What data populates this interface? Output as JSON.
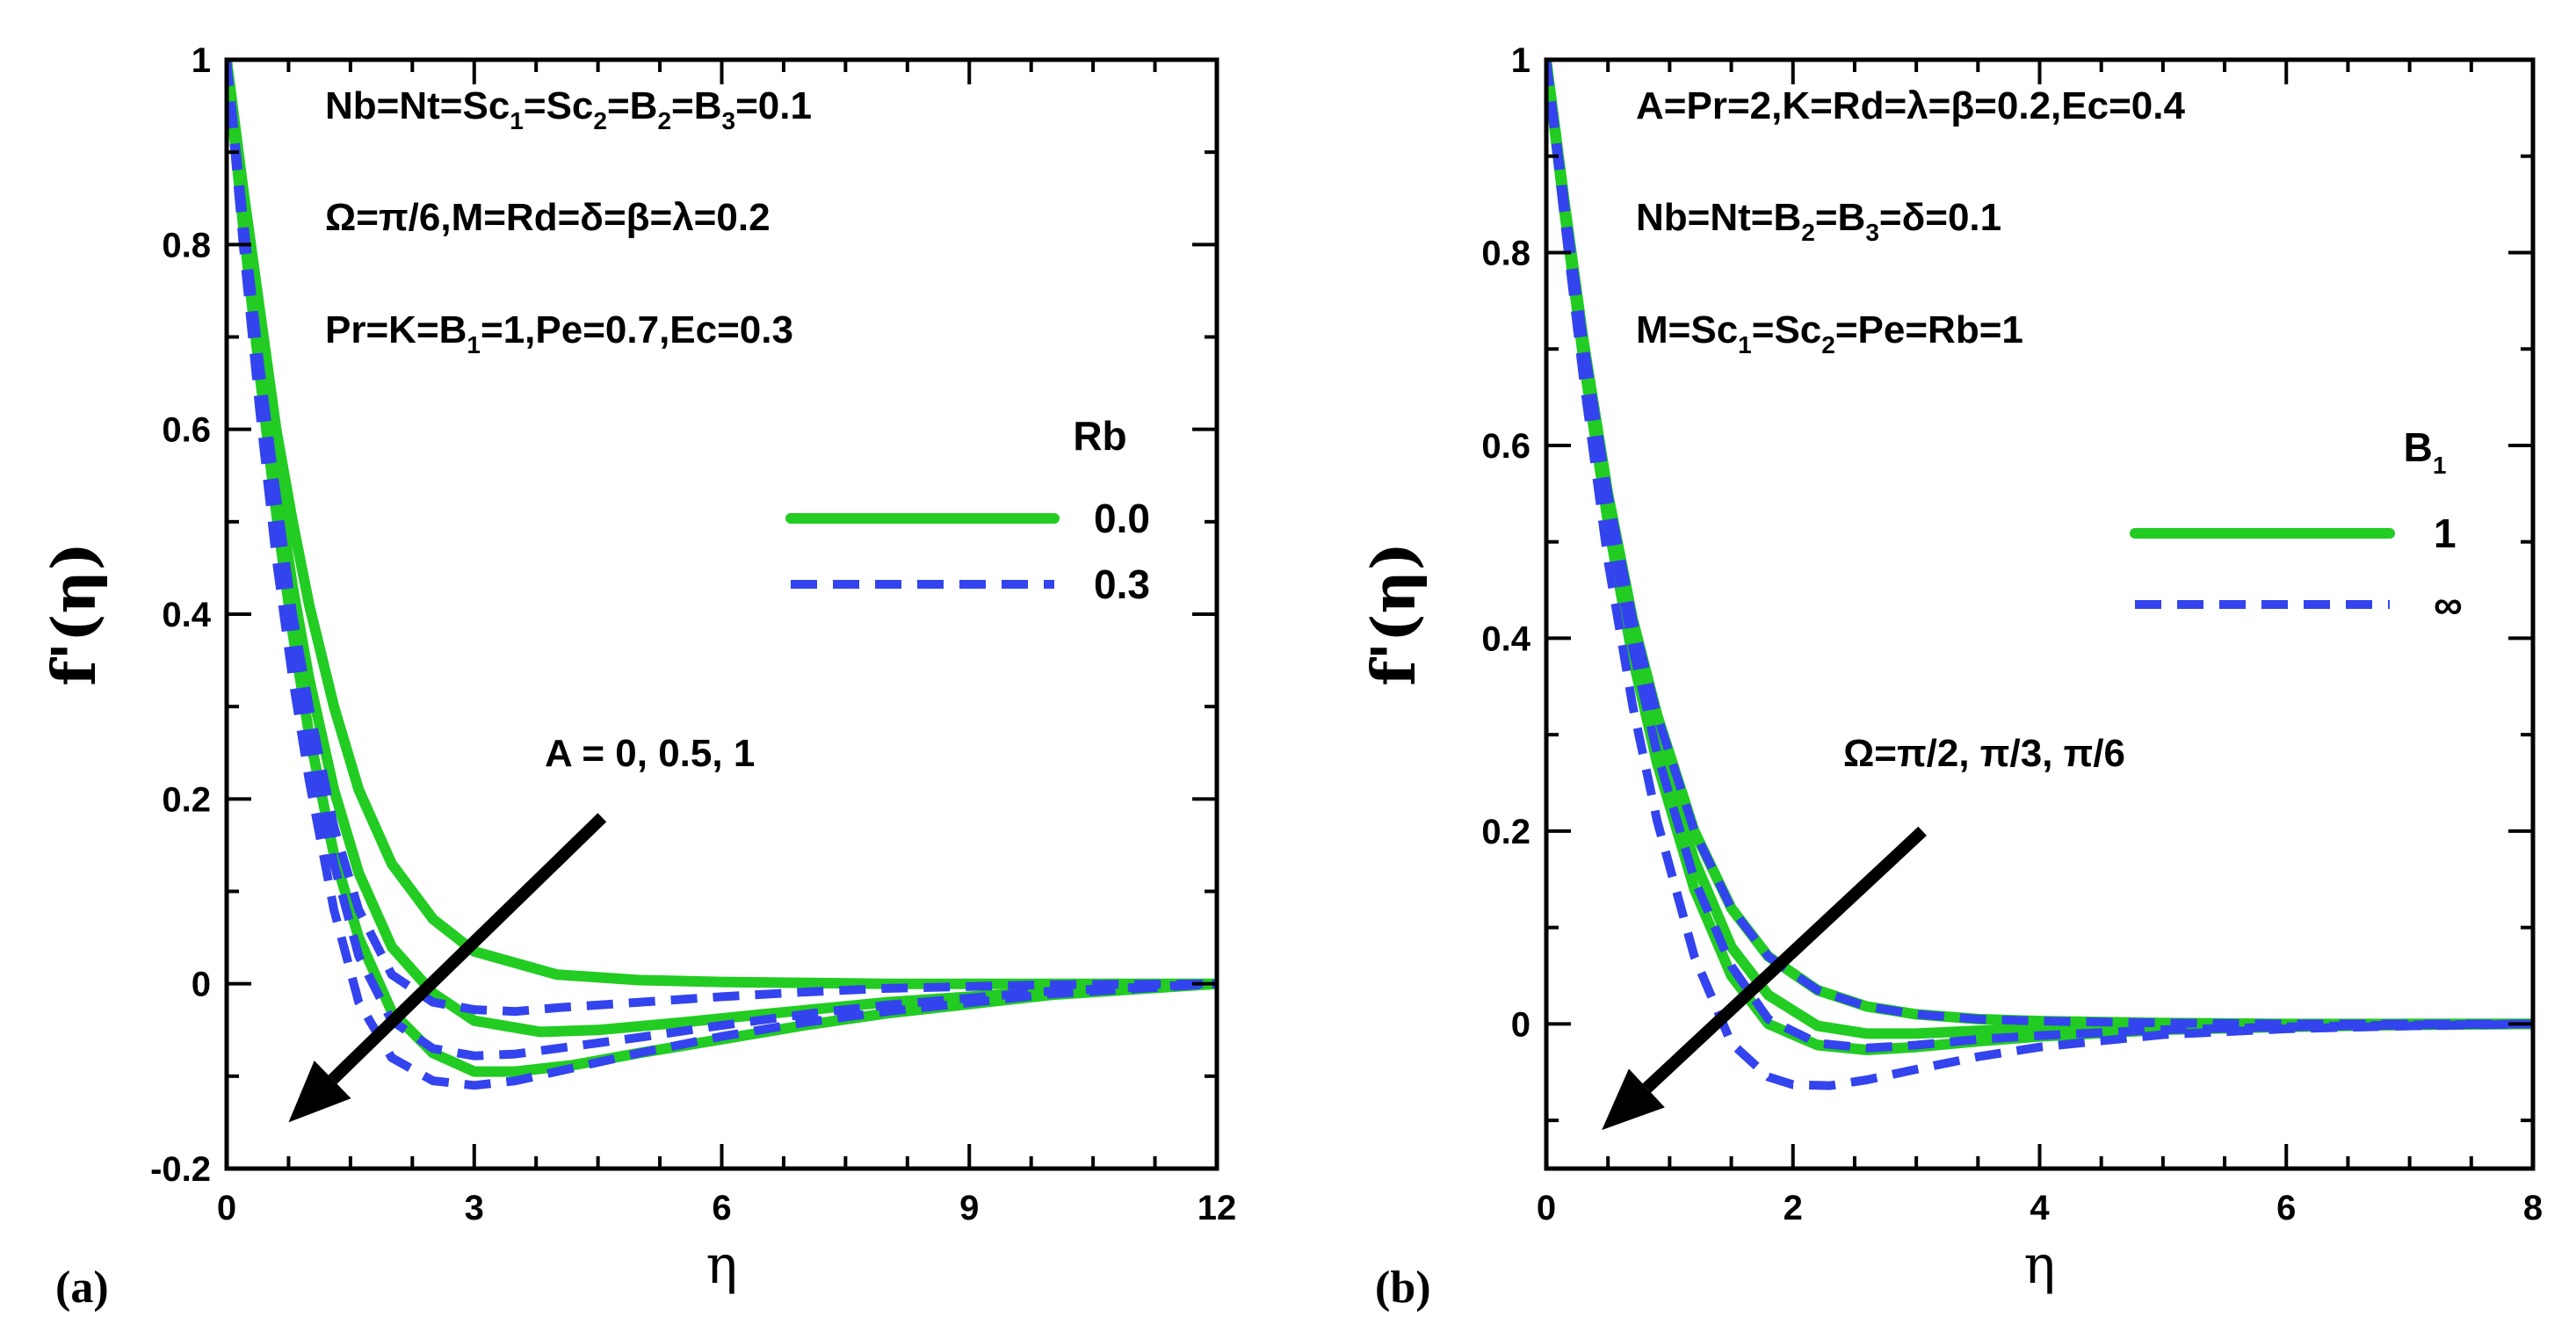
{
  "colors": {
    "solid": "#22cc22",
    "dashed": "#3344ee",
    "axis": "#000000"
  },
  "chart_data": [
    {
      "type": "line",
      "panel_label": "(a)",
      "xlabel": "η",
      "ylabel": "f'(η)",
      "xlim": [
        0,
        12
      ],
      "ylim": [
        -0.2,
        1
      ],
      "xticks": [
        0,
        3,
        6,
        9,
        12
      ],
      "xtick_labels": [
        "0",
        "3",
        "6",
        "9",
        "12"
      ],
      "yticks": [
        -0.2,
        0,
        0.2,
        0.4,
        0.6,
        0.8,
        1
      ],
      "ytick_labels": [
        "-0.2",
        "0",
        "0.2",
        "0.4",
        "0.6",
        "0.8",
        "1"
      ],
      "annotations": [
        {
          "parts": [
            [
              "Nb=Nt=Sc",
              ""
            ],
            [
              "1",
              "sub"
            ],
            [
              "=Sc",
              ""
            ],
            [
              "2",
              "sub"
            ],
            [
              "=B",
              ""
            ],
            [
              "2",
              "sub"
            ],
            [
              "=B",
              ""
            ],
            [
              "3",
              "sub"
            ],
            [
              "=0.1",
              ""
            ]
          ]
        },
        {
          "parts": [
            [
              "Ω=π/6,M=Rd=δ=β=λ=0.2",
              ""
            ]
          ]
        },
        {
          "parts": [
            [
              "Pr=K=B",
              ""
            ],
            [
              "1",
              "sub"
            ],
            [
              "=1,Pe=0.7,Ec=0.3",
              ""
            ]
          ]
        }
      ],
      "arrow_label": "A = 0, 0.5, 1",
      "arrow": {
        "from": [
          4.55,
          0.18
        ],
        "to": [
          0.75,
          -0.15
        ]
      },
      "legend": {
        "title": "Rb",
        "title_sub": "",
        "entries": [
          "0.0",
          "0.3"
        ],
        "position": "right"
      },
      "series": [
        {
          "name": "Rb=0.0, A=0",
          "style": "solid",
          "x": [
            0,
            0.2,
            0.4,
            0.6,
            0.8,
            1,
            1.3,
            1.6,
            2,
            2.5,
            3,
            4,
            5,
            6,
            7,
            8,
            10,
            12
          ],
          "y": [
            1,
            0.86,
            0.73,
            0.6,
            0.5,
            0.41,
            0.3,
            0.21,
            0.13,
            0.07,
            0.035,
            0.01,
            0.004,
            0.002,
            0.001,
            0,
            0,
            0
          ]
        },
        {
          "name": "Rb=0.0, A=0.5",
          "style": "solid",
          "x": [
            0,
            0.2,
            0.4,
            0.6,
            0.8,
            1,
            1.3,
            1.6,
            2,
            2.5,
            3,
            3.8,
            4.5,
            5.5,
            6.5,
            8,
            10,
            12
          ],
          "y": [
            1,
            0.84,
            0.69,
            0.55,
            0.43,
            0.33,
            0.21,
            0.12,
            0.04,
            -0.01,
            -0.04,
            -0.052,
            -0.05,
            -0.042,
            -0.033,
            -0.02,
            -0.008,
            0
          ]
        },
        {
          "name": "Rb=0.0, A=1",
          "style": "solid",
          "x": [
            0,
            0.2,
            0.4,
            0.6,
            0.8,
            1,
            1.3,
            1.6,
            2,
            2.5,
            3,
            3.5,
            4.2,
            5,
            6,
            7,
            8,
            10,
            12
          ],
          "y": [
            1,
            0.82,
            0.66,
            0.51,
            0.38,
            0.27,
            0.14,
            0.05,
            -0.03,
            -0.075,
            -0.095,
            -0.095,
            -0.088,
            -0.075,
            -0.06,
            -0.045,
            -0.032,
            -0.012,
            0
          ]
        },
        {
          "name": "Rb=0.3, A=0",
          "style": "dashed",
          "x": [
            0,
            0.2,
            0.4,
            0.6,
            0.8,
            1,
            1.3,
            1.6,
            2,
            2.5,
            3,
            3.5,
            4,
            5,
            6,
            7,
            8,
            10,
            12
          ],
          "y": [
            1,
            0.83,
            0.67,
            0.53,
            0.4,
            0.3,
            0.17,
            0.08,
            0.01,
            -0.02,
            -0.028,
            -0.03,
            -0.026,
            -0.02,
            -0.014,
            -0.009,
            -0.005,
            -0.001,
            0
          ]
        },
        {
          "name": "Rb=0.3, A=0.5",
          "style": "dashed",
          "x": [
            0,
            0.2,
            0.4,
            0.6,
            0.8,
            1,
            1.3,
            1.6,
            2,
            2.5,
            3,
            3.5,
            4,
            5,
            6,
            7,
            8,
            10,
            12
          ],
          "y": [
            1,
            0.82,
            0.65,
            0.5,
            0.37,
            0.26,
            0.13,
            0.03,
            -0.04,
            -0.07,
            -0.078,
            -0.076,
            -0.07,
            -0.058,
            -0.045,
            -0.033,
            -0.023,
            -0.008,
            0
          ]
        },
        {
          "name": "Rb=0.3, A=1",
          "style": "dashed",
          "x": [
            0,
            0.2,
            0.4,
            0.6,
            0.8,
            1,
            1.3,
            1.6,
            2,
            2.5,
            3,
            3.5,
            4,
            5,
            6,
            7,
            8,
            10,
            12
          ],
          "y": [
            1,
            0.8,
            0.62,
            0.46,
            0.33,
            0.22,
            0.08,
            -0.02,
            -0.08,
            -0.105,
            -0.11,
            -0.105,
            -0.095,
            -0.075,
            -0.057,
            -0.042,
            -0.03,
            -0.011,
            0
          ]
        }
      ]
    },
    {
      "type": "line",
      "panel_label": "(b)",
      "xlabel": "η",
      "ylabel": "f'(η)",
      "xlim": [
        0,
        8
      ],
      "ylim": [
        -0.15,
        1
      ],
      "xticks": [
        0,
        2,
        4,
        6,
        8
      ],
      "xtick_labels": [
        "0",
        "2",
        "4",
        "6",
        "8"
      ],
      "yticks": [
        0,
        0.2,
        0.4,
        0.6,
        0.8,
        1
      ],
      "ytick_labels": [
        "0",
        "0.2",
        "0.4",
        "0.6",
        "0.8",
        "1"
      ],
      "annotations": [
        {
          "parts": [
            [
              "A=Pr=2,K=Rd=λ=β=0.2,Ec=0.4",
              ""
            ]
          ]
        },
        {
          "parts": [
            [
              "Nb=Nt=B",
              ""
            ],
            [
              "2",
              "sub"
            ],
            [
              "=B",
              ""
            ],
            [
              "3",
              "sub"
            ],
            [
              "=δ=0.1",
              ""
            ]
          ]
        },
        {
          "parts": [
            [
              "M=Sc",
              ""
            ],
            [
              "1",
              "sub"
            ],
            [
              "=Sc",
              ""
            ],
            [
              "2",
              "sub"
            ],
            [
              "=Pe=Rb=1",
              ""
            ]
          ]
        }
      ],
      "arrow_label": "Ω=π/2, π/3, π/6",
      "arrow": {
        "from": [
          3.05,
          0.2
        ],
        "to": [
          0.45,
          -0.11
        ]
      },
      "legend": {
        "title": "B",
        "title_sub": "1",
        "entries": [
          "1",
          "∞"
        ],
        "position": "right"
      },
      "series": [
        {
          "name": "B1=1, Ω=π/2",
          "style": "solid",
          "x": [
            0,
            0.15,
            0.3,
            0.5,
            0.7,
            0.9,
            1.2,
            1.5,
            1.8,
            2.2,
            2.6,
            3,
            3.5,
            4,
            5,
            6,
            7,
            8
          ],
          "y": [
            1,
            0.85,
            0.71,
            0.55,
            0.42,
            0.32,
            0.2,
            0.12,
            0.07,
            0.035,
            0.018,
            0.01,
            0.005,
            0.003,
            0.001,
            0,
            0,
            0
          ]
        },
        {
          "name": "B1=1, Ω=π/3",
          "style": "solid",
          "x": [
            0,
            0.15,
            0.3,
            0.5,
            0.7,
            0.9,
            1.2,
            1.5,
            1.8,
            2.2,
            2.6,
            3,
            3.5,
            4,
            5,
            6,
            7,
            8
          ],
          "y": [
            1,
            0.84,
            0.7,
            0.53,
            0.4,
            0.29,
            0.17,
            0.08,
            0.03,
            -0.002,
            -0.01,
            -0.01,
            -0.007,
            -0.005,
            -0.002,
            -0.001,
            0,
            0
          ]
        },
        {
          "name": "B1=1, Ω=π/6",
          "style": "solid",
          "x": [
            0,
            0.15,
            0.3,
            0.5,
            0.7,
            0.9,
            1.2,
            1.5,
            1.8,
            2.2,
            2.6,
            3,
            3.5,
            4,
            5,
            6,
            7,
            8
          ],
          "y": [
            1,
            0.84,
            0.69,
            0.52,
            0.38,
            0.27,
            0.14,
            0.05,
            0,
            -0.022,
            -0.027,
            -0.024,
            -0.018,
            -0.013,
            -0.006,
            -0.003,
            -0.001,
            0
          ]
        },
        {
          "name": "B1=∞, Ω=π/2",
          "style": "dashed",
          "x": [
            0,
            0.15,
            0.3,
            0.5,
            0.7,
            0.9,
            1.2,
            1.5,
            1.8,
            2.2,
            2.6,
            3,
            3.5,
            4,
            5,
            6,
            7,
            8
          ],
          "y": [
            1,
            0.85,
            0.71,
            0.55,
            0.42,
            0.32,
            0.2,
            0.12,
            0.07,
            0.035,
            0.018,
            0.01,
            0.005,
            0.003,
            0.001,
            0,
            0,
            0
          ]
        },
        {
          "name": "B1=∞, Ω=π/3",
          "style": "dashed",
          "x": [
            0,
            0.15,
            0.3,
            0.5,
            0.7,
            0.9,
            1.2,
            1.5,
            1.8,
            2.2,
            2.6,
            3,
            3.5,
            4,
            5,
            6,
            7,
            8
          ],
          "y": [
            1,
            0.84,
            0.7,
            0.53,
            0.39,
            0.28,
            0.15,
            0.06,
            0.005,
            -0.02,
            -0.025,
            -0.022,
            -0.016,
            -0.012,
            -0.006,
            -0.003,
            -0.001,
            0
          ]
        },
        {
          "name": "B1=∞, Ω=π/6",
          "style": "dashed",
          "x": [
            0,
            0.15,
            0.3,
            0.5,
            0.7,
            0.9,
            1.2,
            1.5,
            1.8,
            2,
            2.3,
            2.6,
            3,
            3.5,
            4,
            5,
            6,
            7,
            8
          ],
          "y": [
            1,
            0.83,
            0.67,
            0.48,
            0.33,
            0.21,
            0.07,
            -0.02,
            -0.055,
            -0.063,
            -0.064,
            -0.058,
            -0.047,
            -0.034,
            -0.024,
            -0.011,
            -0.005,
            -0.002,
            0
          ]
        }
      ]
    }
  ]
}
